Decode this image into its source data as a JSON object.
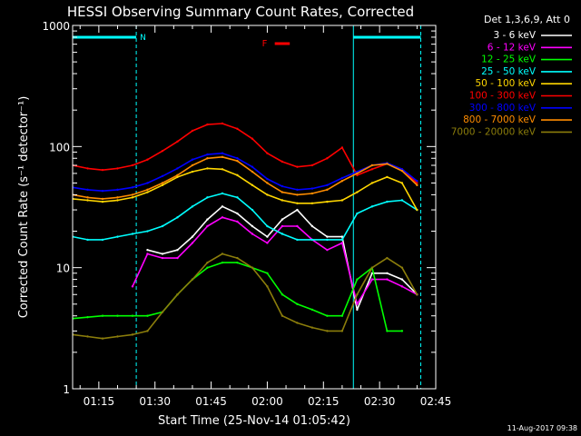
{
  "chart_data": {
    "type": "line",
    "title": "HESSI Observing Summary Count Rates, Corrected",
    "xlabel": "Start Time (25-Nov-14 01:05:42)",
    "ylabel": "Corrected Count Rate (s⁻¹ detector⁻¹)",
    "yscale": "log",
    "ylim": [
      1,
      1000
    ],
    "xlim": [
      "01:08",
      "02:45"
    ],
    "x_ticks": [
      "01:15",
      "01:30",
      "01:45",
      "02:00",
      "02:15",
      "02:30",
      "02:45"
    ],
    "y_ticks": [
      "1",
      "10",
      "100",
      "1000"
    ],
    "footer": "11-Aug-2017 09:38",
    "legend_title": "Det 1,3,6,9, Att 0",
    "legend_position": "right",
    "night_label": "N",
    "flare_label": "F",
    "night_intervals": [
      [
        "01:08",
        "01:25"
      ],
      [
        "02:23",
        "02:41"
      ]
    ],
    "flare_marker": [
      "02:02",
      "02:06"
    ],
    "x": [
      "01:08",
      "01:12",
      "01:16",
      "01:20",
      "01:24",
      "01:28",
      "01:32",
      "01:36",
      "01:40",
      "01:44",
      "01:48",
      "01:52",
      "01:56",
      "02:00",
      "02:04",
      "02:08",
      "02:12",
      "02:16",
      "02:20",
      "02:24",
      "02:28",
      "02:32",
      "02:36",
      "02:40"
    ],
    "series": [
      {
        "name": "3 - 6 keV",
        "color": "#ffffff",
        "values": [
          null,
          null,
          null,
          null,
          null,
          14,
          13,
          14,
          18,
          25,
          32,
          28,
          22,
          18,
          25,
          30,
          22,
          18,
          18,
          4.5,
          9,
          9,
          8,
          6
        ]
      },
      {
        "name": "6 - 12 keV",
        "color": "#ff00ff",
        "values": [
          null,
          null,
          null,
          null,
          7,
          13,
          12,
          12,
          16,
          22,
          26,
          24,
          19,
          16,
          22,
          22,
          17,
          14,
          16,
          5,
          8,
          8,
          7,
          6
        ]
      },
      {
        "name": "12 - 25 keV",
        "color": "#00ff00",
        "values": [
          3.8,
          3.9,
          4.0,
          4.0,
          4.0,
          4.0,
          4.3,
          6,
          8,
          10,
          11,
          11,
          10,
          9,
          6,
          5,
          4.5,
          4,
          4,
          8,
          10,
          3,
          3,
          null
        ]
      },
      {
        "name": "25 - 50 keV",
        "color": "#00ffff",
        "values": [
          18,
          17,
          17,
          18,
          19,
          20,
          22,
          26,
          32,
          38,
          41,
          38,
          30,
          22,
          19,
          17,
          17,
          17,
          17,
          28,
          32,
          35,
          36,
          30
        ]
      },
      {
        "name": "50 - 100 keV",
        "color": "#ffd700",
        "values": [
          37,
          36,
          35,
          36,
          38,
          42,
          48,
          56,
          62,
          66,
          65,
          58,
          48,
          40,
          36,
          34,
          34,
          35,
          36,
          42,
          50,
          56,
          50,
          30
        ]
      },
      {
        "name": "100 - 300 keV",
        "color": "#ff0000",
        "values": [
          70,
          66,
          64,
          66,
          70,
          78,
          92,
          110,
          135,
          152,
          155,
          140,
          116,
          88,
          75,
          68,
          70,
          80,
          98,
          58,
          65,
          72,
          65,
          50
        ]
      },
      {
        "name": "300 - 800 keV",
        "color": "#0000ff",
        "values": [
          46,
          44,
          43,
          44,
          46,
          50,
          57,
          66,
          78,
          86,
          88,
          80,
          68,
          54,
          47,
          44,
          45,
          48,
          55,
          62,
          70,
          73,
          65,
          52
        ]
      },
      {
        "name": "800 - 7000 keV",
        "color": "#ff8c00",
        "values": [
          40,
          38,
          37,
          38,
          40,
          44,
          50,
          58,
          70,
          80,
          82,
          76,
          62,
          50,
          42,
          40,
          41,
          44,
          52,
          60,
          70,
          72,
          63,
          48
        ]
      },
      {
        "name": "7000 - 20000 keV",
        "color": "#8b7d0b",
        "values": [
          2.8,
          2.7,
          2.6,
          2.7,
          2.8,
          3.0,
          4.3,
          6,
          8,
          11,
          13,
          12,
          10,
          7,
          4,
          3.5,
          3.2,
          3.0,
          3.0,
          6,
          10,
          12,
          10,
          6
        ]
      }
    ]
  }
}
